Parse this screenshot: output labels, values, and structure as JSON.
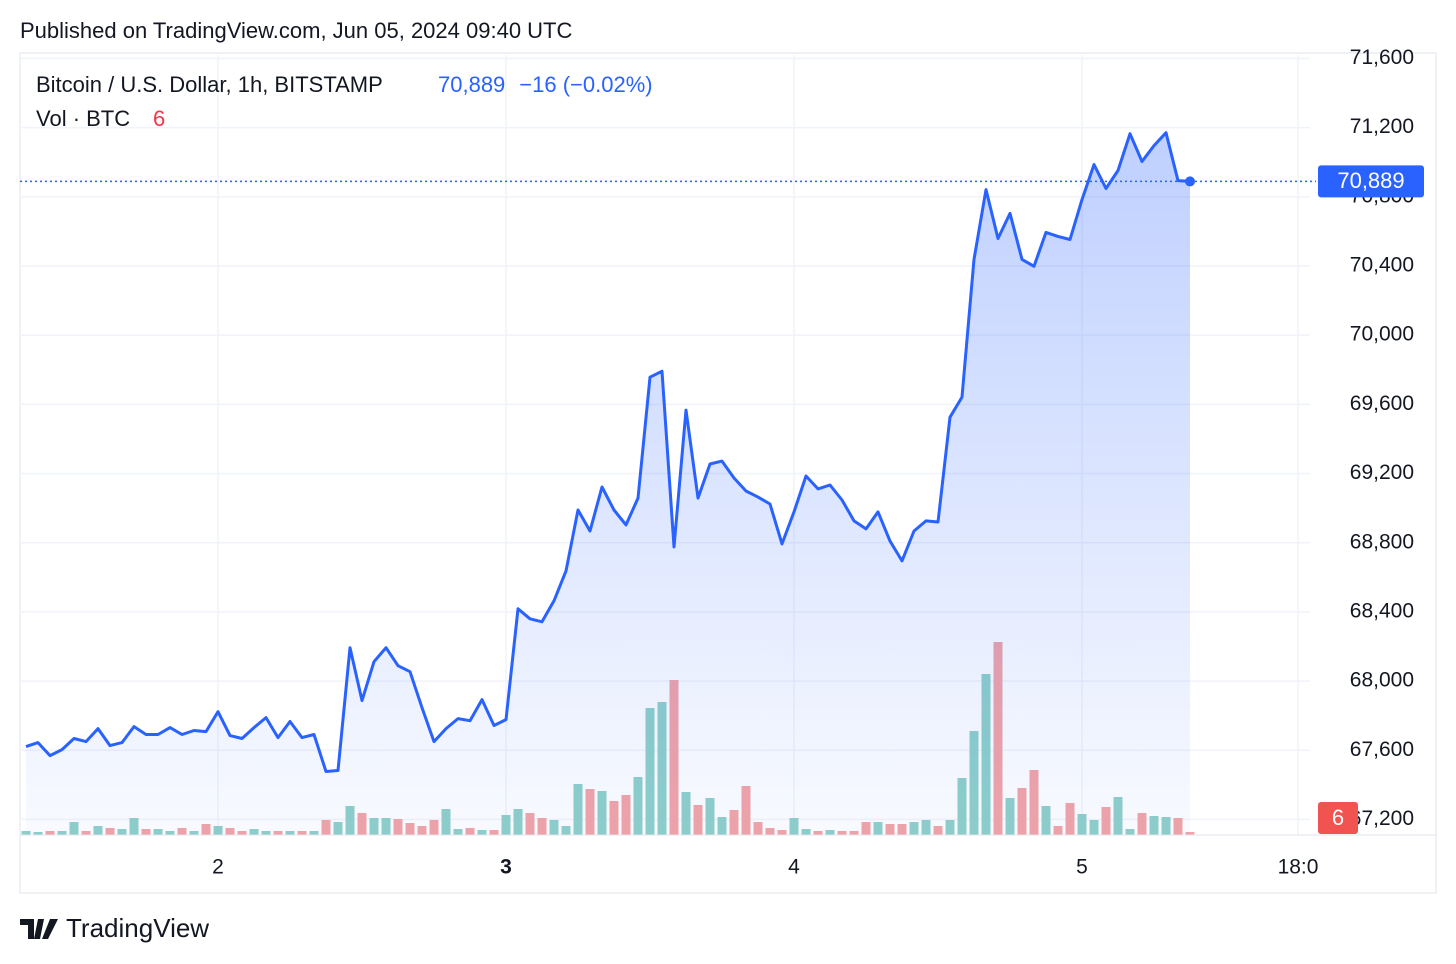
{
  "published": "Published on TradingView.com, Jun 05, 2024 09:40 UTC",
  "brand": "TradingView",
  "chart_data": {
    "type": "line",
    "title": "Bitcoin / U.S. Dollar, 1h, BITSTAMP",
    "last_label": "70,889",
    "change_label": "−16 (−0.02%)",
    "x": [
      8,
      9,
      10,
      11,
      12,
      13,
      14,
      15,
      16,
      17,
      18,
      19,
      20,
      21,
      22,
      23,
      24,
      25,
      26,
      27,
      28,
      29,
      30,
      31,
      32,
      33,
      34,
      35,
      36,
      37,
      38,
      39,
      40,
      41,
      42,
      43,
      44,
      45,
      46,
      47,
      48,
      49,
      50,
      51,
      52,
      53,
      54,
      55,
      56,
      57,
      58,
      59,
      60,
      61,
      62,
      63,
      64,
      65,
      66,
      67,
      68,
      69,
      70,
      71,
      72,
      73,
      74,
      75,
      76,
      77,
      78,
      79,
      80,
      81,
      82,
      83,
      84,
      85,
      86,
      87,
      88,
      89,
      90,
      91,
      92,
      93,
      94,
      95,
      96,
      97,
      98,
      99,
      100,
      101,
      102,
      103,
      104,
      105
    ],
    "xlim": [
      7.5,
      115
    ],
    "xticks": [
      {
        "value": 24,
        "label": "2"
      },
      {
        "value": 48,
        "label": "3"
      },
      {
        "value": 72,
        "label": "4"
      },
      {
        "value": 96,
        "label": "5"
      },
      {
        "value": 114,
        "label": "18:0"
      }
    ],
    "ylim": [
      67110,
      71620
    ],
    "yticks": [
      {
        "value": 67200,
        "label": "67,200"
      },
      {
        "value": 67600,
        "label": "67,600"
      },
      {
        "value": 68000,
        "label": "68,000"
      },
      {
        "value": 68400,
        "label": "68,400"
      },
      {
        "value": 68800,
        "label": "68,800"
      },
      {
        "value": 69200,
        "label": "69,200"
      },
      {
        "value": 69600,
        "label": "69,600"
      },
      {
        "value": 70000,
        "label": "70,000"
      },
      {
        "value": 70400,
        "label": "70,400"
      },
      {
        "value": 70800,
        "label": "70,800"
      },
      {
        "value": 71200,
        "label": "71,200"
      },
      {
        "value": 71600,
        "label": "71,600"
      }
    ],
    "grid": true,
    "series": [
      {
        "name": "Bitcoin / U.S. Dollar, 1h, BITSTAMP",
        "color": "#2962ff",
        "values": [
          67621,
          67644,
          67569,
          67604,
          67668,
          67650,
          67725,
          67627,
          67644,
          67737,
          67691,
          67691,
          67731,
          67691,
          67714,
          67708,
          67823,
          67685,
          67668,
          67731,
          67789,
          67673,
          67766,
          67673,
          67691,
          67477,
          67483,
          68193,
          67887,
          68112,
          68193,
          68089,
          68054,
          67846,
          67650,
          67725,
          67783,
          67771,
          67893,
          67743,
          67777,
          68418,
          68360,
          68343,
          68464,
          68637,
          68989,
          68868,
          69122,
          68989,
          68903,
          69058,
          69757,
          69792,
          68776,
          69567,
          69058,
          69255,
          69272,
          69174,
          69099,
          69064,
          69024,
          68793,
          68978,
          69186,
          69111,
          69134,
          69047,
          68926,
          68880,
          68978,
          68810,
          68695,
          68868,
          68926,
          68920,
          69526,
          69642,
          70438,
          70842,
          70559,
          70704,
          70438,
          70398,
          70594,
          70571,
          70553,
          70784,
          70986,
          70848,
          70952,
          71165,
          71004,
          71096,
          71171,
          70894,
          70889
        ]
      }
    ],
    "volume": {
      "name": "Vol · BTC",
      "last_label": "6",
      "ylim": [
        0,
        1560
      ],
      "up_color": "#8fd0c9",
      "down_color": "#f3a4a6",
      "values": [
        8,
        6,
        8,
        8,
        26,
        8,
        18,
        14,
        12,
        34,
        12,
        12,
        8,
        14,
        8,
        22,
        18,
        14,
        8,
        12,
        8,
        8,
        8,
        8,
        8,
        30,
        26,
        58,
        44,
        34,
        34,
        32,
        24,
        18,
        30,
        52,
        12,
        14,
        10,
        10,
        40,
        52,
        44,
        34,
        30,
        18,
        102,
        92,
        88,
        68,
        80,
        116,
        254,
        266,
        310,
        86,
        60,
        74,
        36,
        50,
        98,
        26,
        14,
        10,
        34,
        12,
        8,
        10,
        8,
        8,
        26,
        26,
        22,
        22,
        26,
        30,
        18,
        30,
        114,
        208,
        322,
        386,
        74,
        94,
        130,
        58,
        18,
        64,
        42,
        30,
        56,
        76,
        12,
        44,
        38,
        36,
        34,
        6
      ]
    }
  }
}
